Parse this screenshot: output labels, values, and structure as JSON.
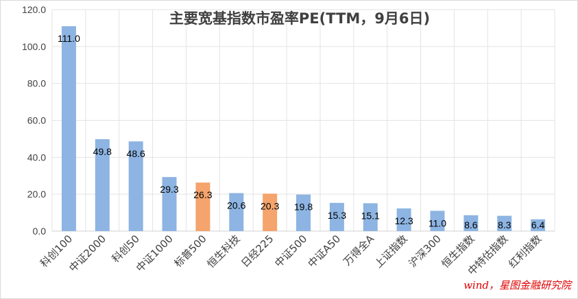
{
  "chart_data": {
    "type": "bar",
    "title": "主要宽基指数市盈率PE(TTM，9月6日)",
    "categories": [
      "科创100",
      "中证2000",
      "科创50",
      "中证1000",
      "标普500",
      "恒生科技",
      "日经225",
      "中证500",
      "中证A50",
      "万得全A",
      "上证指数",
      "沪深300",
      "恒生指数",
      "中特估指数",
      "红利指数"
    ],
    "values": [
      111.0,
      49.8,
      48.6,
      29.3,
      26.3,
      20.6,
      20.3,
      19.8,
      15.3,
      15.1,
      12.3,
      11.0,
      8.6,
      8.3,
      6.4
    ],
    "value_labels": [
      "111.0",
      "49.8",
      "48.6",
      "29.3",
      "26.3",
      "20.6",
      "20.3",
      "19.8",
      "15.3",
      "15.1",
      "12.3",
      "11.0",
      "8.6",
      "8.3",
      "6.4"
    ],
    "yticks": [
      "0.0",
      "20.0",
      "40.0",
      "60.0",
      "80.0",
      "100.0",
      "120.0"
    ],
    "ylim": [
      0,
      120
    ],
    "grid": true,
    "legend": "none",
    "colors": {
      "default_bar": "#8DB4E2",
      "highlight_bar": "#F4A46C",
      "highlight_categories": [
        "标普500",
        "日经225"
      ]
    },
    "source_note": "wind，星图金融研究院"
  }
}
